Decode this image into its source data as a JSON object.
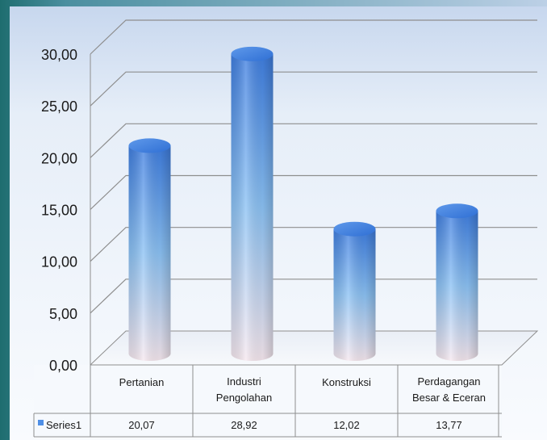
{
  "chart_data": {
    "type": "bar",
    "title": "",
    "xlabel": "",
    "ylabel": "",
    "categories": [
      [
        "Pertanian"
      ],
      [
        "Industri",
        "Pengolahan"
      ],
      [
        "Konstruksi"
      ],
      [
        "Perdagangan",
        "Besar & Eceran"
      ]
    ],
    "series": [
      {
        "name": "Series1",
        "values": [
          20.07,
          28.92,
          12.02,
          13.77
        ]
      }
    ],
    "value_labels": [
      "20,07",
      "28,92",
      "12,02",
      "13,77"
    ],
    "y_ticks": [
      "0,00",
      "5,00",
      "10,00",
      "15,00",
      "20,00",
      "25,00",
      "30,00"
    ],
    "ylim": [
      0,
      30
    ],
    "grid": true,
    "legend": "data-table-bottom",
    "colors": {
      "bar_top": "#3f7ee0",
      "bar_mid": "#8cc2f4",
      "bar_bottom": "#f6e8ef",
      "legend_key": "#4f8fe6"
    }
  }
}
